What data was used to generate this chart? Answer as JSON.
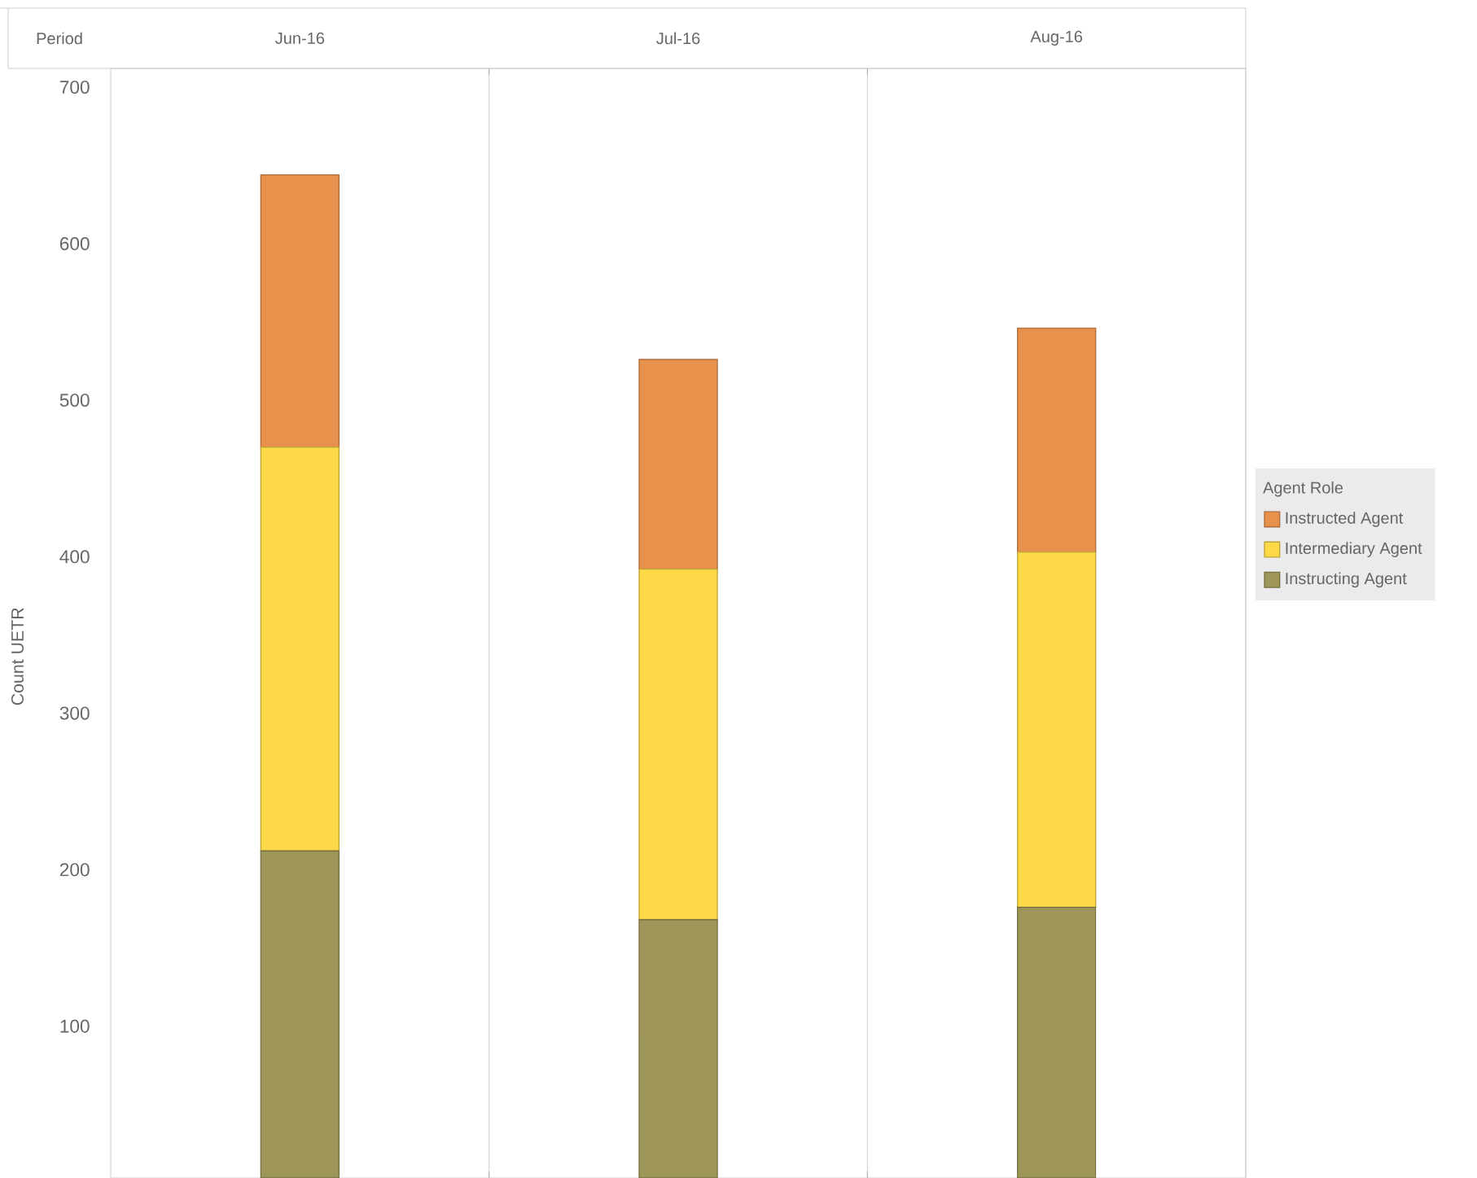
{
  "chart_data": {
    "type": "bar",
    "stacked": true,
    "annotations": [
      "Period"
    ],
    "ylabel": "Count UETR",
    "legend_title": "Agent Role",
    "legend": "right",
    "categories": [
      "Jun-16",
      "Jul-16",
      "Aug-16"
    ],
    "series": [
      {
        "name": "Instructing Agent",
        "color": "#9e9558",
        "values": [
          212,
          168,
          176
        ]
      },
      {
        "name": "Intermediary Agent",
        "color": "#fdd947",
        "values": [
          258,
          224,
          227
        ]
      },
      {
        "name": "Instructed Agent",
        "color": "#e8914d",
        "values": [
          174,
          134,
          143
        ]
      }
    ],
    "ylim": [
      3,
      712
    ],
    "yticks": [
      100,
      200,
      300,
      400,
      500,
      600,
      700
    ]
  }
}
